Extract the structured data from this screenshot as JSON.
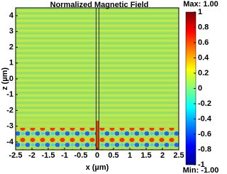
{
  "chart_data": {
    "type": "heatmap",
    "title": "Normalized Magnetic Field",
    "xlabel": "x (µm)",
    "ylabel": "z (µm)",
    "xlim": [
      -2.5,
      2.5
    ],
    "xticks": [
      -2.5,
      -2,
      -1.5,
      -1,
      -0.5,
      0,
      0.5,
      1,
      1.5,
      2,
      2.5
    ],
    "ylim": [
      -4.5,
      4.5
    ],
    "yticks": [
      -4,
      -3,
      -2,
      -1,
      0,
      1,
      2,
      3,
      4
    ],
    "clim": [
      -1,
      1
    ],
    "cticks": [
      -1,
      -0.8,
      -0.6,
      -0.4,
      -0.2,
      0,
      0.2,
      0.4,
      0.6,
      0.8,
      1
    ],
    "max_label": "Max: 1.00",
    "min_label": "Min: -1.00"
  }
}
